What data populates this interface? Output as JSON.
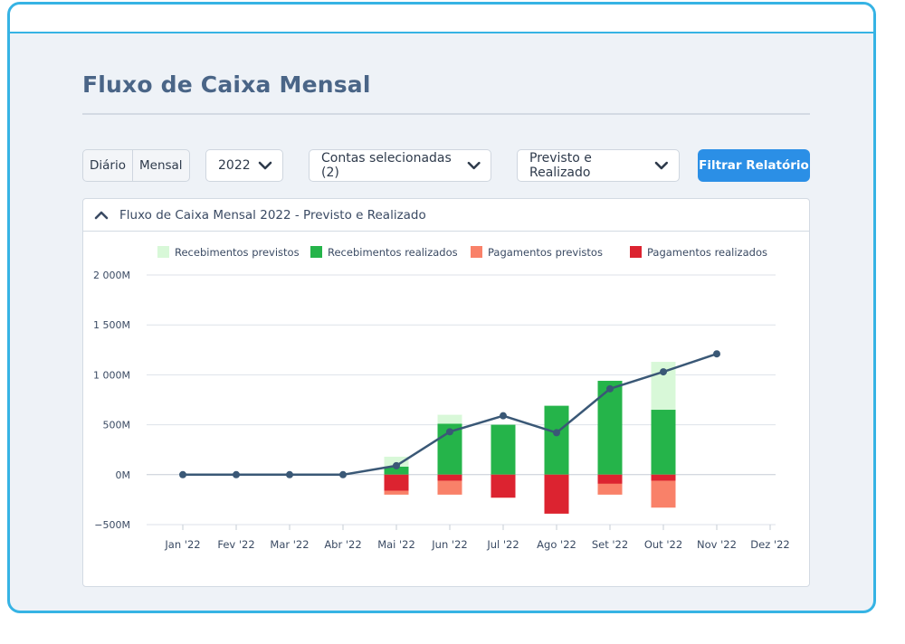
{
  "page": {
    "title": "Fluxo de Caixa Mensal"
  },
  "toolbar": {
    "period_toggle": [
      "Diário",
      "Mensal"
    ],
    "year_select": "2022",
    "accounts_select": "Contas selecionadas (2)",
    "mode_select": "Previsto e Realizado",
    "filter_button": "Filtrar Relatório"
  },
  "panel": {
    "title": "Fluxo de Caixa Mensal 2022 - Previsto e Realizado"
  },
  "colors": {
    "receb_previstos": "#d8f8d8",
    "receb_realizados": "#25b44a",
    "pag_previstos": "#f98169",
    "pag_realizados": "#dc2330",
    "line": "#3a5876"
  },
  "chart_data": {
    "type": "bar",
    "categories": [
      "Jan '22",
      "Fev '22",
      "Mar '22",
      "Abr '22",
      "Mai '22",
      "Jun '22",
      "Jul '22",
      "Ago '22",
      "Set '22",
      "Out '22",
      "Nov '22",
      "Dez '22"
    ],
    "series": [
      {
        "name": "Recebimentos previstos",
        "values": [
          0,
          0,
          0,
          0,
          180,
          600,
          500,
          690,
          940,
          1130,
          null,
          null
        ]
      },
      {
        "name": "Recebimentos realizados",
        "values": [
          0,
          0,
          0,
          0,
          80,
          510,
          500,
          690,
          940,
          650,
          null,
          null
        ]
      },
      {
        "name": "Pagamentos previstos",
        "values": [
          0,
          0,
          0,
          0,
          -200,
          -200,
          -230,
          -390,
          -200,
          -330,
          null,
          null
        ]
      },
      {
        "name": "Pagamentos realizados",
        "values": [
          0,
          0,
          0,
          0,
          -160,
          -60,
          -230,
          -390,
          -90,
          -60,
          null,
          null
        ]
      }
    ],
    "line": {
      "values": [
        0,
        0,
        0,
        0,
        90,
        430,
        590,
        420,
        860,
        1030,
        1210,
        null
      ]
    },
    "yticks": [
      -500,
      0,
      500,
      1000,
      1500,
      2000
    ],
    "ytick_labels": [
      "−500M",
      "0M",
      "500M",
      "1 000M",
      "1 500M",
      "2 000M"
    ],
    "ylim": [
      -500,
      2000
    ],
    "legend_position": "top",
    "grid": true
  }
}
